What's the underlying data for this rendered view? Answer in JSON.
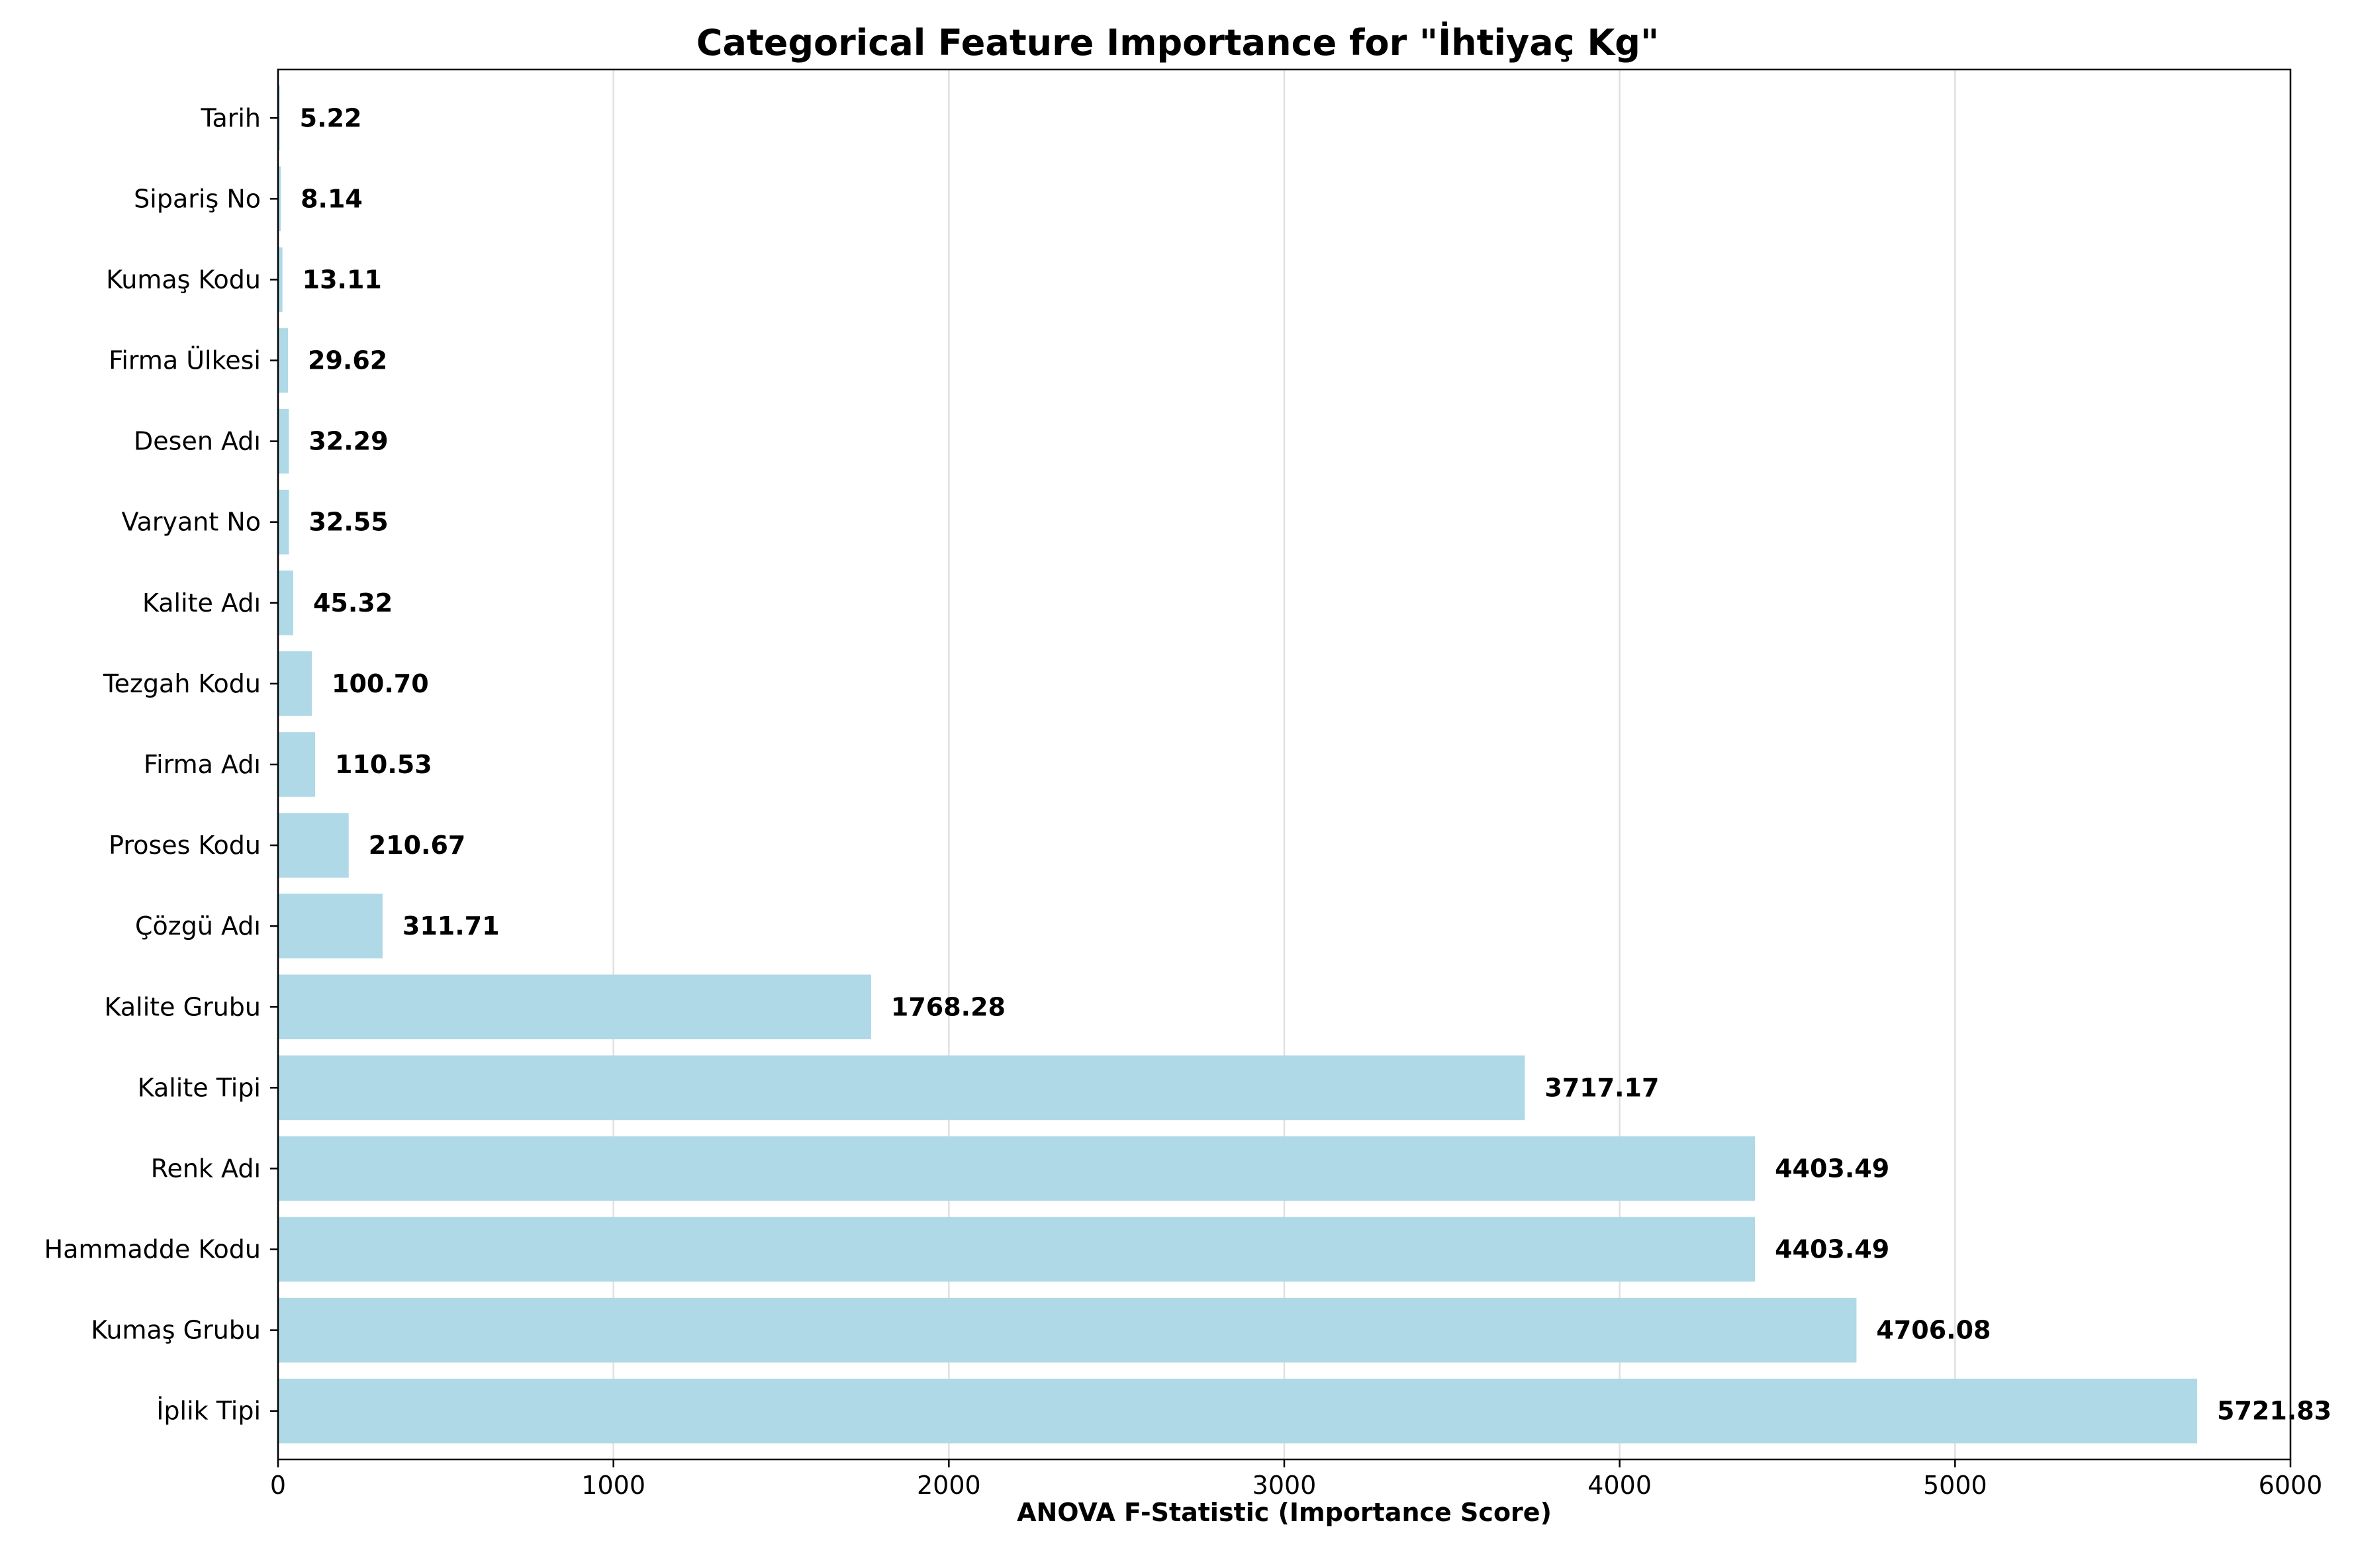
{
  "chart_data": {
    "type": "bar",
    "orientation": "horizontal",
    "title": "Categorical Feature Importance for \"İhtiyaç Kg\"",
    "xlabel": "ANOVA F-Statistic (Importance Score)",
    "ylabel": "",
    "xlim": [
      0,
      6000
    ],
    "xticks": [
      0,
      1000,
      2000,
      3000,
      4000,
      5000,
      6000
    ],
    "grid": "vertical",
    "bar_color": "#ADD8E6",
    "categories": [
      "İplik Tipi",
      "Kumaş Grubu",
      "Hammadde Kodu",
      "Renk Adı",
      "Kalite Tipi",
      "Kalite Grubu",
      "Çözgü Adı",
      "Proses Kodu",
      "Firma Adı",
      "Tezgah Kodu",
      "Kalite Adı",
      "Varyant No",
      "Desen Adı",
      "Firma Ülkesi",
      "Kumaş Kodu",
      "Sipariş No",
      "Tarih"
    ],
    "values": [
      5721.83,
      4706.08,
      4403.49,
      4403.49,
      3717.17,
      1768.28,
      311.71,
      210.67,
      110.53,
      100.7,
      45.32,
      32.55,
      32.29,
      29.62,
      13.11,
      8.14,
      5.22
    ],
    "value_labels": [
      "5721.83",
      "4706.08",
      "4403.49",
      "4403.49",
      "3717.17",
      "1768.28",
      "311.71",
      "210.67",
      "110.53",
      "100.70",
      "45.32",
      "32.55",
      "32.29",
      "29.62",
      "13.11",
      "8.14",
      "5.22"
    ]
  }
}
